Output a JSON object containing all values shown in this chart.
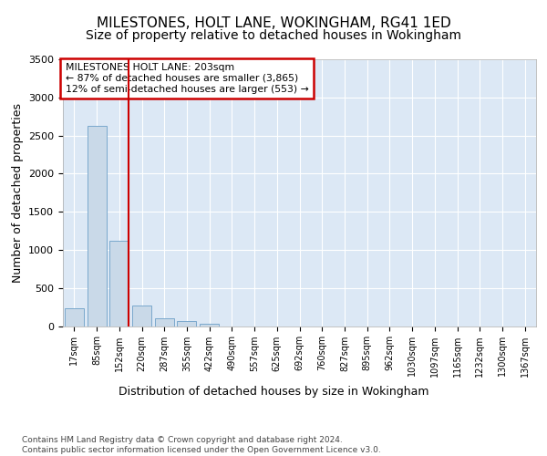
{
  "title": "MILESTONES, HOLT LANE, WOKINGHAM, RG41 1ED",
  "subtitle": "Size of property relative to detached houses in Wokingham",
  "xlabel": "Distribution of detached houses by size in Wokingham",
  "ylabel": "Number of detached properties",
  "bar_labels": [
    "17sqm",
    "85sqm",
    "152sqm",
    "220sqm",
    "287sqm",
    "355sqm",
    "422sqm",
    "490sqm",
    "557sqm",
    "625sqm",
    "692sqm",
    "760sqm",
    "827sqm",
    "895sqm",
    "962sqm",
    "1030sqm",
    "1097sqm",
    "1165sqm",
    "1232sqm",
    "1300sqm",
    "1367sqm"
  ],
  "bar_values": [
    230,
    2630,
    1120,
    270,
    100,
    60,
    30,
    0,
    0,
    0,
    0,
    0,
    0,
    0,
    0,
    0,
    0,
    0,
    0,
    0,
    0
  ],
  "bar_color": "#c9d9e8",
  "bar_edgecolor": "#7aa8cc",
  "vline_pos": 2.425,
  "vline_color": "#cc0000",
  "annotation_text": "MILESTONES HOLT LANE: 203sqm\n← 87% of detached houses are smaller (3,865)\n12% of semi-detached houses are larger (553) →",
  "annotation_box_color": "#ffffff",
  "annotation_box_edgecolor": "#cc0000",
  "ylim": [
    0,
    3500
  ],
  "yticks": [
    0,
    500,
    1000,
    1500,
    2000,
    2500,
    3000,
    3500
  ],
  "background_color": "#dce8f5",
  "footer_text": "Contains HM Land Registry data © Crown copyright and database right 2024.\nContains public sector information licensed under the Open Government Licence v3.0.",
  "title_fontsize": 11,
  "subtitle_fontsize": 10,
  "xlabel_fontsize": 9,
  "ylabel_fontsize": 9,
  "footer_fontsize": 6.5
}
